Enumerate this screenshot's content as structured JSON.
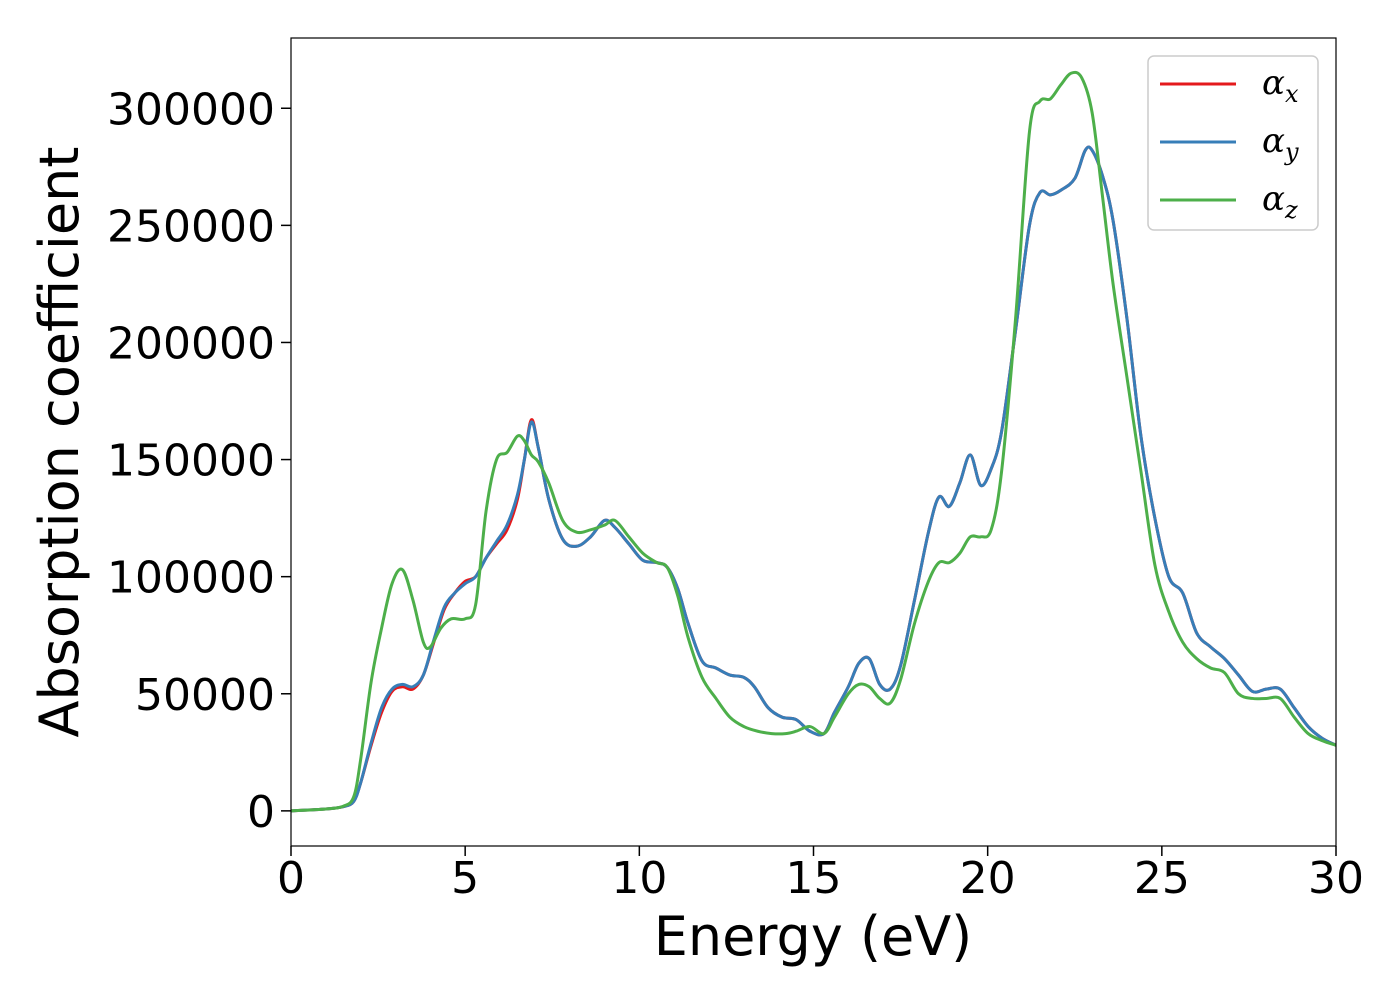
{
  "chart_data": {
    "type": "line",
    "title": "",
    "xlabel": "Energy (eV)",
    "ylabel": "Absorption coefficient",
    "xlim": [
      0,
      30
    ],
    "ylim": [
      -15000,
      330000
    ],
    "xticks": [
      0,
      5,
      10,
      15,
      20,
      25,
      30
    ],
    "yticks": [
      0,
      50000,
      100000,
      150000,
      200000,
      250000,
      300000
    ],
    "grid": false,
    "legend_position": "top-right",
    "series": [
      {
        "name": "α_x",
        "label_base": "α",
        "label_sub": "x",
        "color": "#e41a1c",
        "x": [
          0,
          1,
          1.5,
          1.8,
          2.0,
          2.3,
          2.6,
          2.9,
          3.2,
          3.5,
          3.8,
          4.1,
          4.4,
          4.7,
          5.0,
          5.3,
          5.6,
          5.9,
          6.2,
          6.5,
          6.7,
          6.9,
          7.1,
          7.4,
          7.8,
          8.2,
          8.6,
          9.0,
          9.3,
          9.7,
          10.1,
          10.5,
          10.8,
          11.1,
          11.4,
          11.8,
          12.2,
          12.6,
          13.0,
          13.3,
          13.7,
          14.1,
          14.5,
          14.9,
          15.3,
          15.6,
          16.0,
          16.3,
          16.6,
          16.9,
          17.2,
          17.5,
          17.9,
          18.3,
          18.6,
          18.9,
          19.2,
          19.5,
          19.8,
          20.1,
          20.4,
          20.8,
          21.2,
          21.5,
          21.8,
          22.1,
          22.5,
          22.8,
          23.0,
          23.3,
          23.6,
          24.0,
          24.4,
          24.8,
          25.2,
          25.6,
          26.0,
          26.4,
          26.8,
          27.2,
          27.6,
          28.0,
          28.4,
          28.8,
          29.2,
          29.6,
          30
        ],
        "y": [
          0,
          800,
          1800,
          4000,
          12000,
          28000,
          42000,
          51000,
          53000,
          52000,
          58000,
          72000,
          86000,
          93000,
          98000,
          100000,
          108000,
          114000,
          120000,
          133000,
          150000,
          167000,
          155000,
          133000,
          116000,
          113000,
          117000,
          124000,
          121000,
          114000,
          107000,
          106000,
          104000,
          95000,
          80000,
          64000,
          61000,
          58000,
          57000,
          53000,
          44000,
          40000,
          39000,
          34000,
          33000,
          42000,
          53000,
          63000,
          65000,
          54000,
          52000,
          62000,
          90000,
          119000,
          134000,
          130000,
          140000,
          152000,
          139000,
          146000,
          162000,
          205000,
          250000,
          264000,
          263000,
          265000,
          270000,
          282000,
          282000,
          271000,
          252000,
          210000,
          160000,
          125000,
          100000,
          93000,
          76000,
          70000,
          65000,
          58000,
          51000,
          52000,
          52000,
          44000,
          36000,
          31000,
          28000
        ]
      },
      {
        "name": "α_y",
        "label_base": "α",
        "label_sub": "y",
        "color": "#377eb8",
        "x": [
          0,
          1,
          1.5,
          1.8,
          2.0,
          2.3,
          2.6,
          2.9,
          3.2,
          3.5,
          3.8,
          4.1,
          4.4,
          4.7,
          5.0,
          5.3,
          5.6,
          5.9,
          6.2,
          6.5,
          6.7,
          6.9,
          7.1,
          7.4,
          7.8,
          8.2,
          8.6,
          9.0,
          9.3,
          9.7,
          10.1,
          10.5,
          10.8,
          11.1,
          11.4,
          11.8,
          12.2,
          12.6,
          13.0,
          13.3,
          13.7,
          14.1,
          14.5,
          14.9,
          15.3,
          15.6,
          16.0,
          16.3,
          16.6,
          16.9,
          17.2,
          17.5,
          17.9,
          18.3,
          18.6,
          18.9,
          19.2,
          19.5,
          19.8,
          20.1,
          20.4,
          20.8,
          21.2,
          21.5,
          21.8,
          22.1,
          22.5,
          22.8,
          23.0,
          23.3,
          23.6,
          24.0,
          24.4,
          24.8,
          25.2,
          25.6,
          26.0,
          26.4,
          26.8,
          27.2,
          27.6,
          28.0,
          28.4,
          28.8,
          29.2,
          29.6,
          30
        ],
        "y": [
          0,
          800,
          1800,
          4000,
          12000,
          29000,
          44000,
          52000,
          54000,
          53000,
          58000,
          73000,
          87000,
          93000,
          97000,
          100000,
          108000,
          115000,
          122000,
          135000,
          150000,
          166000,
          155000,
          133000,
          116000,
          113000,
          117000,
          124000,
          121000,
          114000,
          107000,
          106000,
          104000,
          95000,
          80000,
          64000,
          61000,
          58000,
          57000,
          53000,
          44000,
          40000,
          39000,
          34000,
          33000,
          42000,
          53000,
          63000,
          65000,
          54000,
          52000,
          62000,
          90000,
          119000,
          134000,
          130000,
          140000,
          152000,
          139000,
          146000,
          162000,
          205000,
          250000,
          264000,
          263000,
          265000,
          270000,
          282000,
          282000,
          271000,
          252000,
          210000,
          160000,
          125000,
          100000,
          93000,
          76000,
          70000,
          65000,
          58000,
          51000,
          52000,
          52000,
          44000,
          36000,
          31000,
          28000
        ]
      },
      {
        "name": "α_z",
        "label_base": "α",
        "label_sub": "z",
        "color": "#4daf4a",
        "x": [
          0,
          1,
          1.5,
          1.8,
          2.0,
          2.3,
          2.6,
          2.9,
          3.2,
          3.5,
          3.8,
          4.0,
          4.3,
          4.6,
          5.0,
          5.3,
          5.6,
          5.9,
          6.2,
          6.5,
          6.7,
          6.9,
          7.1,
          7.4,
          7.8,
          8.2,
          8.6,
          9.0,
          9.3,
          9.7,
          10.1,
          10.5,
          10.8,
          11.1,
          11.4,
          11.8,
          12.2,
          12.6,
          13.0,
          13.4,
          13.8,
          14.2,
          14.5,
          14.9,
          15.3,
          15.6,
          16.0,
          16.3,
          16.6,
          16.9,
          17.2,
          17.5,
          17.9,
          18.3,
          18.6,
          18.9,
          19.2,
          19.5,
          19.8,
          20.1,
          20.4,
          20.8,
          21.2,
          21.5,
          21.8,
          22.1,
          22.4,
          22.7,
          23.0,
          23.3,
          23.6,
          24.0,
          24.4,
          24.8,
          25.2,
          25.6,
          26.0,
          26.4,
          26.8,
          27.2,
          27.6,
          28.0,
          28.4,
          28.8,
          29.2,
          29.6,
          30
        ],
        "y": [
          0,
          800,
          2000,
          6000,
          22000,
          55000,
          78000,
          97000,
          103000,
          90000,
          72000,
          70000,
          78000,
          82000,
          82000,
          88000,
          128000,
          150000,
          153000,
          160000,
          158000,
          152000,
          149000,
          140000,
          124000,
          119000,
          120000,
          122000,
          124000,
          117000,
          110000,
          106000,
          104000,
          92000,
          74000,
          57000,
          48000,
          40000,
          36000,
          34000,
          33000,
          33000,
          34000,
          36000,
          33000,
          40000,
          50000,
          54000,
          53000,
          48000,
          46000,
          56000,
          80000,
          98000,
          106000,
          106000,
          110000,
          117000,
          117000,
          120000,
          145000,
          210000,
          290000,
          303000,
          304000,
          310000,
          315000,
          313000,
          298000,
          262000,
          225000,
          185000,
          145000,
          105000,
          85000,
          72000,
          65000,
          61000,
          59000,
          50000,
          48000,
          48000,
          48000,
          40000,
          33000,
          30000,
          28000
        ]
      }
    ]
  }
}
